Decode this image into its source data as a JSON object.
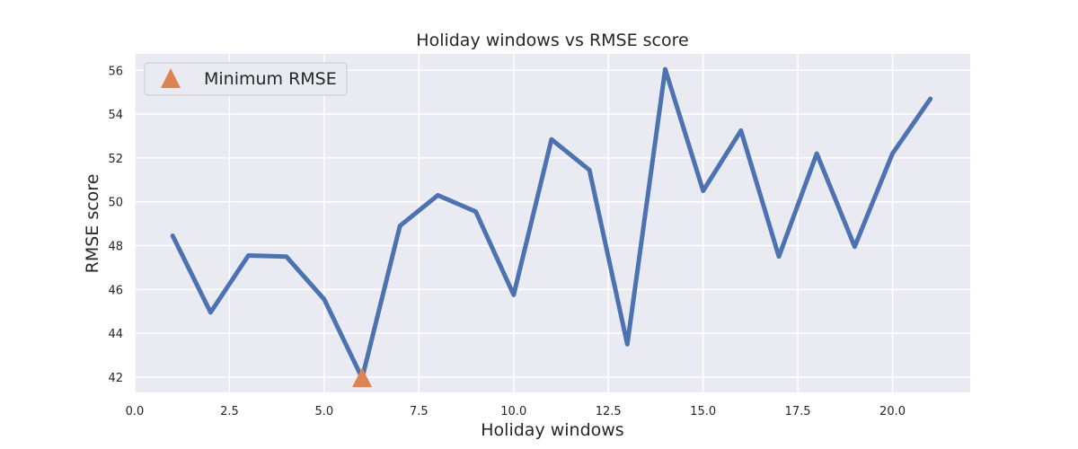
{
  "chart_data": {
    "type": "line",
    "title": "Holiday windows vs RMSE score",
    "xlabel": "Holiday windows",
    "ylabel": "RMSE score",
    "xlim": [
      0,
      22.05
    ],
    "ylim": [
      41.3,
      56.75
    ],
    "xticks": [
      0,
      2.5,
      5,
      7.5,
      10,
      12.5,
      15,
      17.5,
      20
    ],
    "xtick_labels": [
      "0.0",
      "2.5",
      "5.0",
      "7.5",
      "10.0",
      "12.5",
      "15.0",
      "17.5",
      "20.0"
    ],
    "yticks": [
      42,
      44,
      46,
      48,
      50,
      52,
      54,
      56
    ],
    "ytick_labels": [
      "42",
      "44",
      "46",
      "48",
      "50",
      "52",
      "54",
      "56"
    ],
    "grid": true,
    "legend_position": "top-left",
    "series": [
      {
        "color": "#4c72b0",
        "x": [
          1,
          2,
          3,
          4,
          5,
          6,
          7,
          8,
          9,
          10,
          11,
          12,
          13,
          14,
          15,
          16,
          17,
          18,
          19,
          20,
          21
        ],
        "y": [
          48.45,
          44.95,
          47.55,
          47.5,
          45.55,
          41.95,
          48.9,
          50.3,
          49.55,
          45.75,
          52.85,
          51.45,
          43.5,
          56.05,
          50.5,
          53.25,
          47.5,
          52.2,
          47.95,
          52.2,
          54.7
        ]
      }
    ],
    "markers": [
      {
        "name": "Minimum RMSE",
        "x": 6,
        "y": 41.95,
        "shape": "triangle",
        "color": "#dd8452"
      }
    ]
  },
  "style": {
    "plot_background": "#eaeaf2",
    "grid_color": "#ffffff"
  }
}
